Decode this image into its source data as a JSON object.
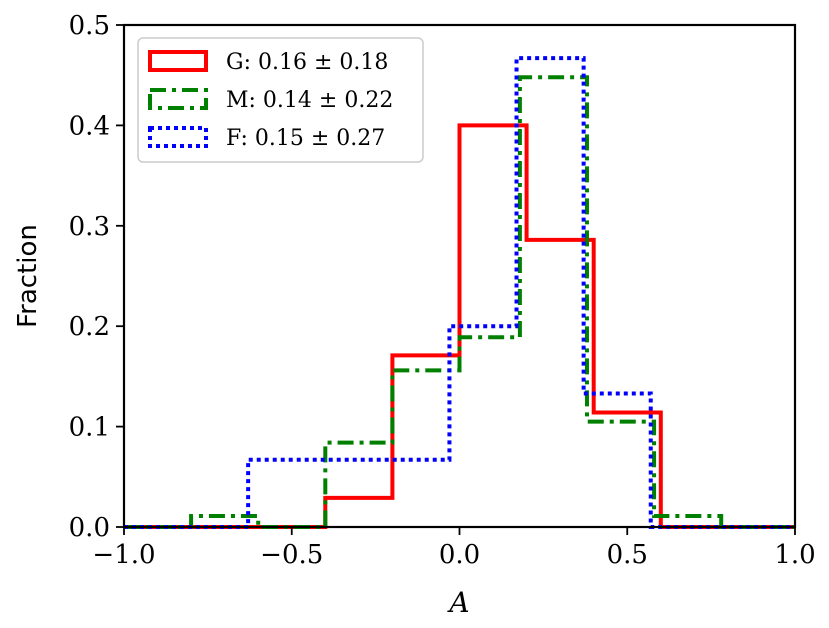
{
  "chart_data": {
    "type": "histogram",
    "xlabel": "A",
    "ylabel": "Fraction",
    "xlim": [
      -1.0,
      1.0
    ],
    "ylim": [
      0.0,
      0.5
    ],
    "xticks": [
      -1.0,
      -0.5,
      0.0,
      0.5,
      1.0
    ],
    "xtick_labels": [
      "−1.0",
      "−0.5",
      "0.0",
      "0.5",
      "1.0"
    ],
    "yticks": [
      0.0,
      0.1,
      0.2,
      0.3,
      0.4,
      0.5
    ],
    "ytick_labels": [
      "0.0",
      "0.1",
      "0.2",
      "0.3",
      "0.4",
      "0.5"
    ],
    "legend_position": "top-left",
    "grid": false,
    "series": [
      {
        "name": "G: 0.16 ± 0.18",
        "color": "#ff0000",
        "style": "solid",
        "edges": [
          -1.0,
          -0.8,
          -0.6,
          -0.4,
          -0.2,
          0.0,
          0.2,
          0.4,
          0.6,
          0.8,
          1.0
        ],
        "values": [
          0.0,
          0.0,
          0.0,
          0.029,
          0.171,
          0.4,
          0.286,
          0.114,
          0.0,
          0.0
        ]
      },
      {
        "name": "M: 0.14 ± 0.22",
        "color": "#008000",
        "style": "dashdot",
        "edges": [
          -1.0,
          -0.8,
          -0.6,
          -0.4,
          -0.2,
          0.0,
          0.18,
          0.38,
          0.58,
          0.78,
          1.0
        ],
        "values": [
          0.0,
          0.011,
          0.0,
          0.084,
          0.156,
          0.189,
          0.448,
          0.105,
          0.011,
          0.0
        ]
      },
      {
        "name": "F: 0.15 ± 0.27",
        "color": "#0000ff",
        "style": "dotted",
        "edges": [
          -1.0,
          -0.81,
          -0.63,
          -0.43,
          -0.25,
          -0.03,
          0.17,
          0.37,
          0.57,
          0.77,
          1.0
        ],
        "values": [
          0.0,
          0.0,
          0.067,
          0.067,
          0.067,
          0.2,
          0.467,
          0.133,
          0.0,
          0.0
        ]
      }
    ]
  }
}
